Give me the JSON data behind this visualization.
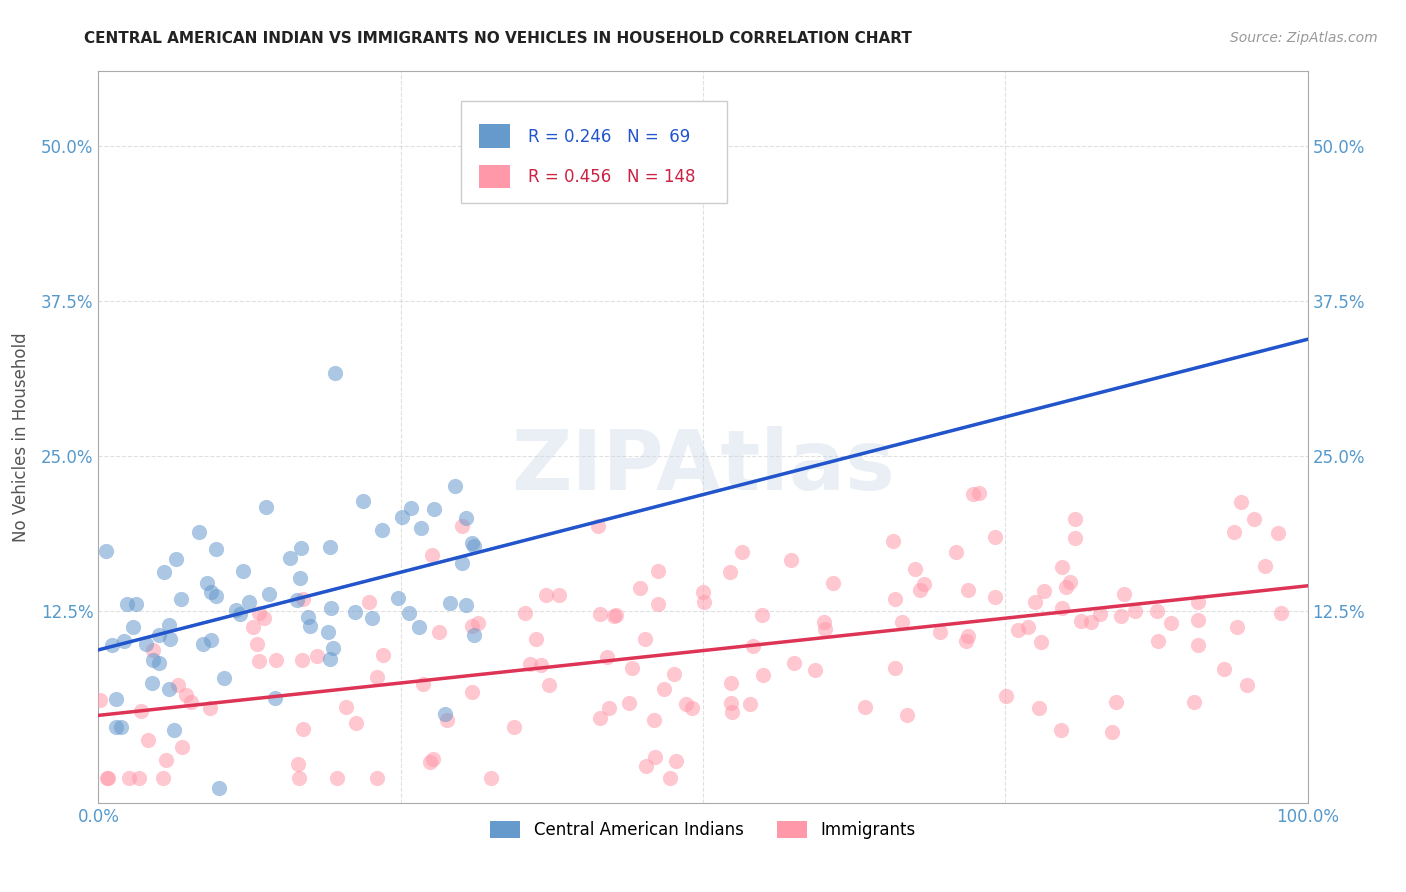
{
  "title": "CENTRAL AMERICAN INDIAN VS IMMIGRANTS NO VEHICLES IN HOUSEHOLD CORRELATION CHART",
  "source": "Source: ZipAtlas.com",
  "ylabel": "No Vehicles in Household",
  "xlim": [
    0,
    1.0
  ],
  "ylim": [
    -0.03,
    0.56
  ],
  "ytick_labels": [
    "12.5%",
    "25.0%",
    "37.5%",
    "50.0%"
  ],
  "ytick_values": [
    0.125,
    0.25,
    0.375,
    0.5
  ],
  "legend_label1": "Central American Indians",
  "legend_label2": "Immigrants",
  "r1": 0.246,
  "n1": 69,
  "r2": 0.456,
  "n2": 148,
  "color_blue": "#6699CC",
  "color_pink": "#FF99AA",
  "line_blue": "#2255CC",
  "line_pink": "#DD3355",
  "line_blue_dash": "#99BBDD",
  "background": "#FFFFFF",
  "seed1": 42,
  "seed2": 7,
  "scatter_size": 120,
  "scatter_alpha": 0.55,
  "title_fontsize": 11,
  "axis_tick_color": "#5599CC",
  "ylabel_color": "#555555",
  "source_color": "#999999",
  "watermark_text": "ZIPAtlas",
  "watermark_color": "#C8D8E8",
  "watermark_alpha": 0.4,
  "watermark_fontsize": 60
}
